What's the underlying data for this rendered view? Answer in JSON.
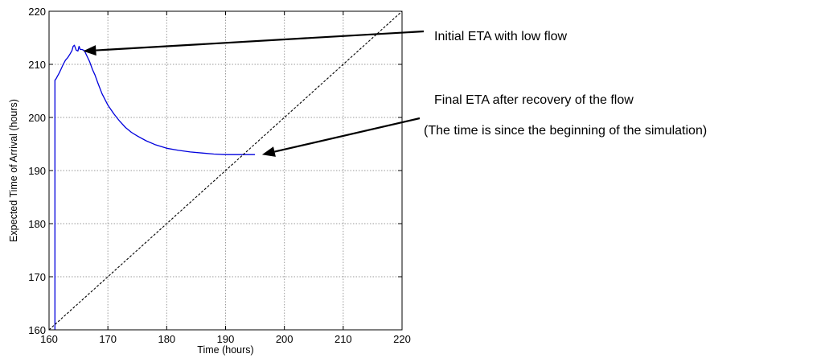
{
  "chart_data": {
    "type": "line",
    "xlabel": "Time (hours)",
    "ylabel": "Expected Time of Arrival (hours)",
    "xlim": [
      160,
      220
    ],
    "ylim": [
      160,
      220
    ],
    "xticks": [
      160,
      170,
      180,
      190,
      200,
      210,
      220
    ],
    "yticks": [
      160,
      170,
      180,
      190,
      200,
      210,
      220
    ],
    "grid": true,
    "colors": {
      "eta": "#0000dd",
      "reference": "#000000"
    },
    "series": [
      {
        "style": "solid",
        "x": [
          161.0,
          161.0,
          161.2,
          161.4,
          161.7,
          162.0,
          162.4,
          162.8,
          163.2,
          163.6,
          163.9,
          164.1,
          164.3,
          164.6,
          164.9,
          165.1,
          165.3,
          165.6,
          166.0,
          166.3,
          166.6,
          166.9,
          167.1,
          167.4,
          167.8,
          168.3,
          169.0,
          170.0,
          171.0,
          172.0,
          173.0,
          174.0,
          175.0,
          176.5,
          178.0,
          180.0,
          182.0,
          184.0,
          186.0,
          188.0,
          190.0,
          192.0,
          194.0,
          195.0
        ],
        "y": [
          160.0,
          207.0,
          207.3,
          207.7,
          208.3,
          209.0,
          210.0,
          210.8,
          211.3,
          212.0,
          212.6,
          213.4,
          213.6,
          212.7,
          212.5,
          213.4,
          212.8,
          212.8,
          212.6,
          211.9,
          211.2,
          210.5,
          209.9,
          209.0,
          208.0,
          206.5,
          204.5,
          202.3,
          200.7,
          199.3,
          198.1,
          197.2,
          196.5,
          195.6,
          194.9,
          194.2,
          193.8,
          193.5,
          193.3,
          193.1,
          193.0,
          193.0,
          193.0,
          193.0
        ]
      },
      {
        "style": "dashed",
        "x": [
          160,
          220
        ],
        "y": [
          160,
          220
        ]
      }
    ],
    "annotations": [
      {
        "text": "Initial ETA with low flow",
        "x": 165.8,
        "y": 212.5
      },
      {
        "text": "Final ETA after recovery of the flow",
        "x": 196.2,
        "y": 193.0
      },
      {
        "text": "(The time is since the beginning of the simulation)"
      }
    ]
  }
}
